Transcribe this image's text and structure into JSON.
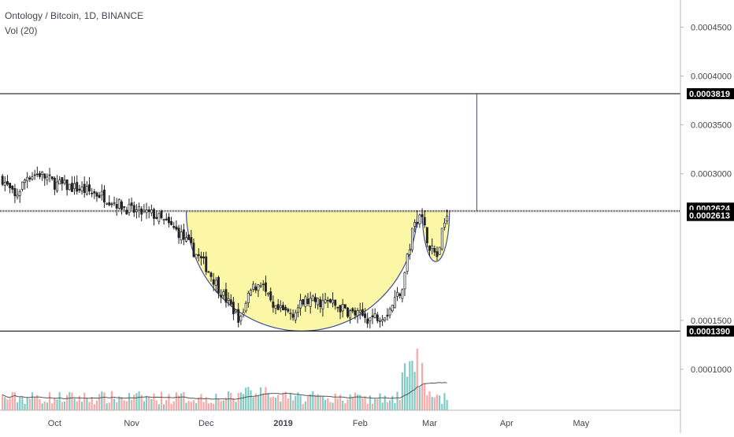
{
  "header": {
    "symbol_line": "Ontology / Bitcoin, 1D, BINANCE",
    "volume_line": "Vol (20)"
  },
  "colors": {
    "up": "#26a69a",
    "down": "#222222",
    "cup_fill": "#fbf7a6",
    "cup_stroke": "#3f4ea5",
    "target_line": "#4b5bd8",
    "level_line": "#000000",
    "vol_up": "#80cbc4",
    "vol_down": "#f7a9a7",
    "vol_ma": "#555555"
  },
  "chart_data": {
    "type": "candlestick",
    "x_labels": [
      "Oct",
      "Nov",
      "Dec",
      "2019",
      "Feb",
      "Mar",
      "Apr",
      "May"
    ],
    "y_ticks": [
      "0.0004500",
      "0.0004000",
      "0.0003500",
      "0.0003000",
      "0.0001500",
      "0.0001000"
    ],
    "price_labels": [
      {
        "text": "0.0003819",
        "value": 0.0003819
      },
      {
        "text": "0.0002624",
        "value": 0.0002624
      },
      {
        "text": "0.0002613",
        "value": 0.0002613
      },
      {
        "text": "0.0001390",
        "value": 0.000139
      }
    ],
    "horizontal_levels": [
      0.0003819,
      0.0002624,
      0.0002613,
      0.000139
    ],
    "target_projection": {
      "from": 0.0002624,
      "to": 0.0003819,
      "date": "2019-03-20"
    },
    "date_range": [
      "2018-09-09",
      "2019-06-10"
    ],
    "price_range": [
      8e-05,
      0.00048
    ],
    "series": [
      {
        "name": "Ontology / Bitcoin",
        "points": [
          {
            "date": "2018-09-10",
            "close": 0.000295
          },
          {
            "date": "2018-09-15",
            "close": 0.000275
          },
          {
            "date": "2018-09-20",
            "close": 0.000298
          },
          {
            "date": "2018-09-25",
            "close": 0.0003
          },
          {
            "date": "2018-10-01",
            "close": 0.00029
          },
          {
            "date": "2018-10-10",
            "close": 0.000285
          },
          {
            "date": "2018-10-20",
            "close": 0.000278
          },
          {
            "date": "2018-11-01",
            "close": 0.000262
          },
          {
            "date": "2018-11-10",
            "close": 0.000258
          },
          {
            "date": "2018-11-20",
            "close": 0.00024
          },
          {
            "date": "2018-12-01",
            "close": 0.000205
          },
          {
            "date": "2018-12-08",
            "close": 0.000175
          },
          {
            "date": "2018-12-15",
            "close": 0.00015
          },
          {
            "date": "2018-12-19",
            "close": 0.00018
          },
          {
            "date": "2018-12-23",
            "close": 0.00019
          },
          {
            "date": "2018-12-28",
            "close": 0.00016
          },
          {
            "date": "2019-01-05",
            "close": 0.000158
          },
          {
            "date": "2019-01-10",
            "close": 0.00017
          },
          {
            "date": "2019-01-20",
            "close": 0.000168
          },
          {
            "date": "2019-01-28",
            "close": 0.000158
          },
          {
            "date": "2019-02-05",
            "close": 0.000152
          },
          {
            "date": "2019-02-12",
            "close": 0.000158
          },
          {
            "date": "2019-02-18",
            "close": 0.000185
          },
          {
            "date": "2019-02-22",
            "close": 0.00024
          },
          {
            "date": "2019-02-25",
            "close": 0.000262
          },
          {
            "date": "2019-03-01",
            "close": 0.000225
          },
          {
            "date": "2019-03-04",
            "close": 0.000215
          },
          {
            "date": "2019-03-08",
            "close": 0.000262
          }
        ]
      }
    ]
  }
}
